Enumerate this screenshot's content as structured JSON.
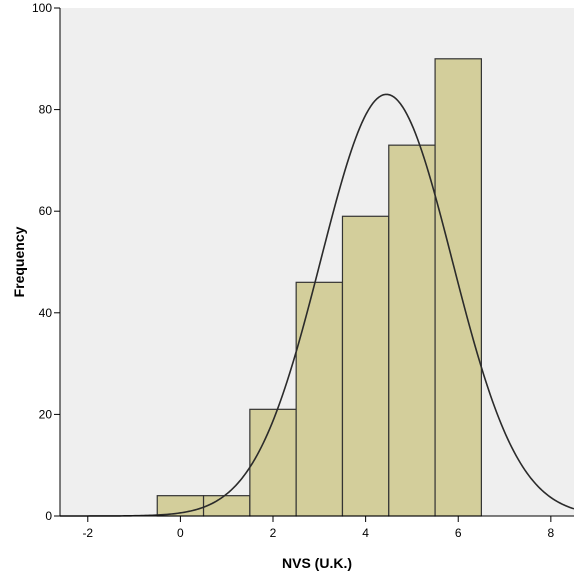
{
  "chart_data": {
    "type": "bar",
    "xlabel": "NVS (U.K.)",
    "ylabel": "Frequency",
    "xlim": [
      -2.6,
      8.5
    ],
    "ylim": [
      0,
      100
    ],
    "bins": [
      {
        "center": 0,
        "value": 4
      },
      {
        "center": 1,
        "value": 4
      },
      {
        "center": 2,
        "value": 21
      },
      {
        "center": 3,
        "value": 46
      },
      {
        "center": 4,
        "value": 59
      },
      {
        "center": 5,
        "value": 73
      },
      {
        "center": 6,
        "value": 90
      }
    ],
    "bin_width": 1,
    "x_ticks": [
      "-2",
      "0",
      "2",
      "4",
      "6",
      "8"
    ],
    "y_ticks": [
      "0",
      "20",
      "40",
      "60",
      "80",
      "100"
    ],
    "normal_curve": {
      "mean": 4.45,
      "sd": 1.42,
      "peak": 83
    },
    "colors": {
      "bar_fill": "#d3ce9b",
      "bar_stroke": "#333333",
      "plot_bg": "#efefef",
      "curve": "#2b2b2b"
    }
  }
}
